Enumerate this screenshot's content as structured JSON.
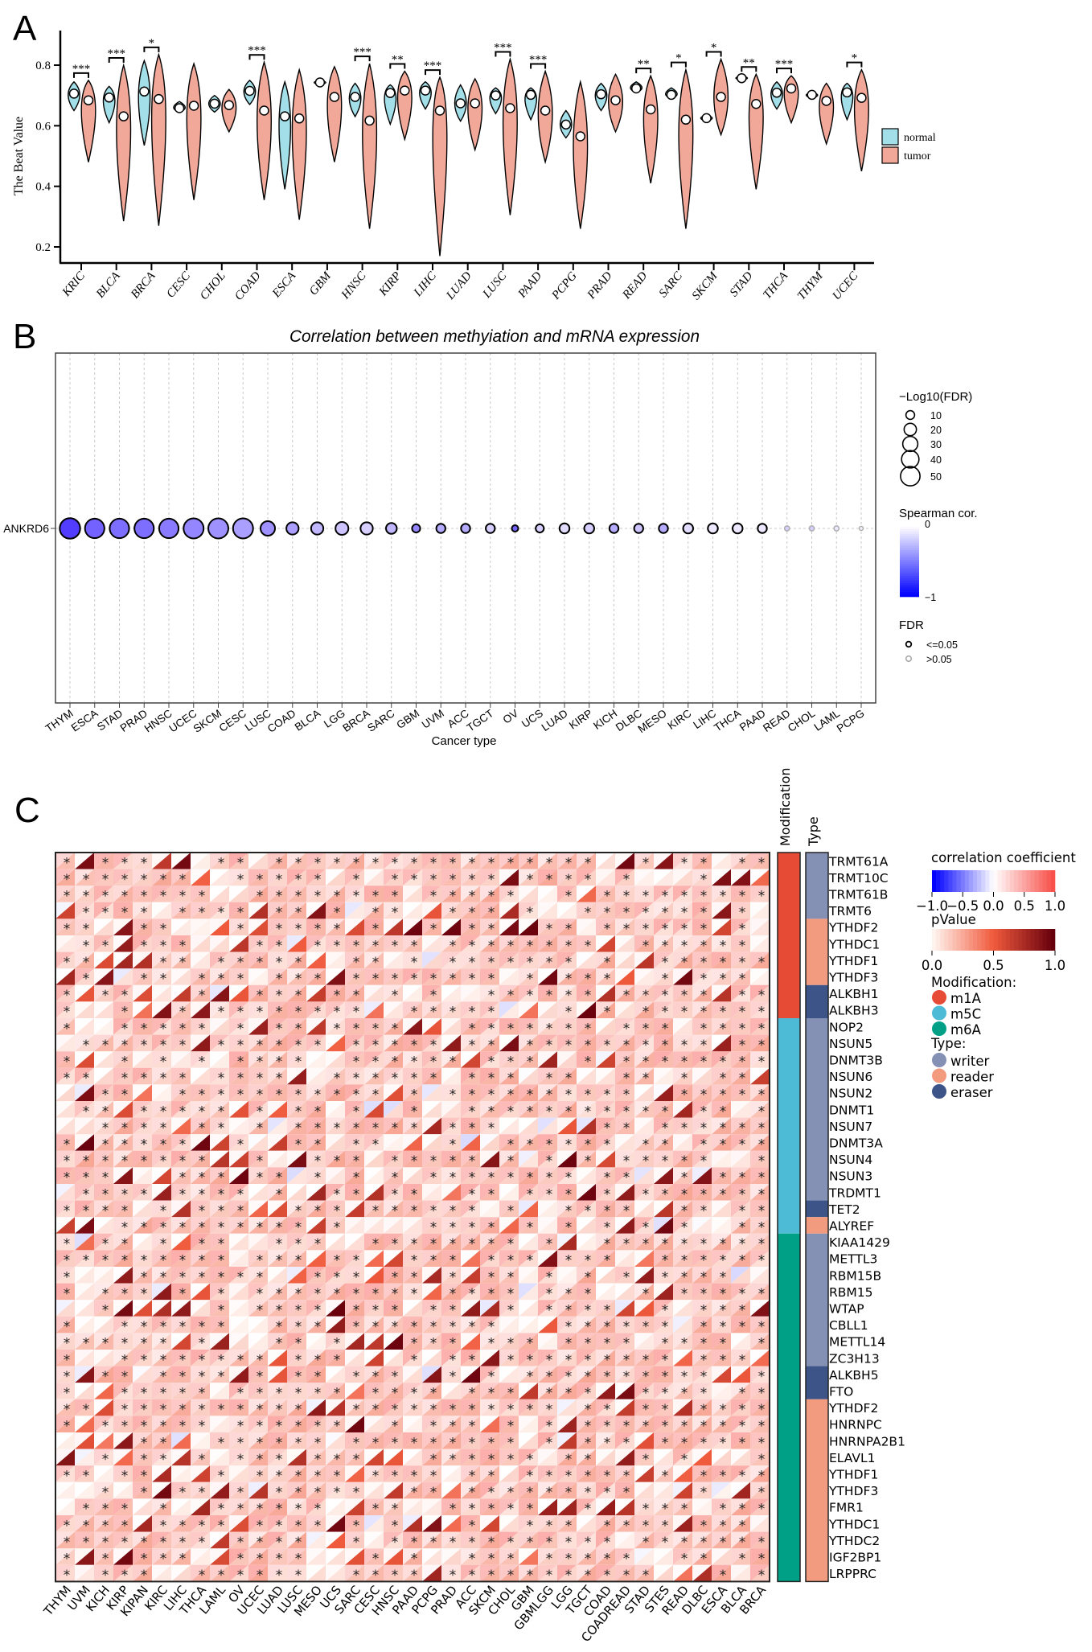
{
  "panels": {
    "a": "A",
    "b": "B",
    "c": "C"
  },
  "chart_data": [
    {
      "type": "violin",
      "ylabel": "The Beat Value",
      "ylim": [
        0.15,
        0.88
      ],
      "yticks": [
        "0.2",
        "0.4",
        "0.6",
        "0.8"
      ],
      "categories": [
        "KRIC",
        "BLCA",
        "BRCA",
        "CESC",
        "CHOL",
        "COAD",
        "ESCA",
        "GBM",
        "HNSC",
        "KIRP",
        "LIHC",
        "LUAD",
        "LUSC",
        "PAAD",
        "PCPG",
        "PRAD",
        "READ",
        "SARC",
        "SKCM",
        "STAD",
        "THCA",
        "THYM",
        "UCEC"
      ],
      "legend": [
        {
          "name": "normal",
          "color": "#a3dfe8"
        },
        {
          "name": "tumor",
          "color": "#f2a898"
        }
      ],
      "series": {
        "normal": {
          "median": [
            0.706,
            0.693,
            0.713,
            0.658,
            0.673,
            0.715,
            0.631,
            0.743,
            0.695,
            0.708,
            0.716,
            0.674,
            0.7,
            0.702,
            0.604,
            0.704,
            0.723,
            0.702,
            0.625,
            0.757,
            0.709,
            0.702,
            0.71
          ],
          "min": [
            0.65,
            0.61,
            0.535,
            0.645,
            0.645,
            0.67,
            0.39,
            0.735,
            0.63,
            0.605,
            0.655,
            0.615,
            0.64,
            0.62,
            0.56,
            0.65,
            0.71,
            0.69,
            0.615,
            0.75,
            0.655,
            0.69,
            0.62
          ],
          "max": [
            0.745,
            0.73,
            0.815,
            0.68,
            0.7,
            0.75,
            0.745,
            0.75,
            0.74,
            0.735,
            0.745,
            0.735,
            0.725,
            0.725,
            0.65,
            0.74,
            0.745,
            0.725,
            0.635,
            0.765,
            0.745,
            0.71,
            0.74
          ]
        },
        "tumor": {
          "median": [
            0.684,
            0.631,
            0.688,
            0.666,
            0.668,
            0.65,
            0.624,
            0.695,
            0.617,
            0.716,
            0.65,
            0.674,
            0.658,
            0.65,
            0.565,
            0.684,
            0.654,
            0.62,
            0.695,
            0.672,
            0.723,
            0.682,
            0.692
          ],
          "min": [
            0.48,
            0.285,
            0.27,
            0.355,
            0.58,
            0.355,
            0.29,
            0.48,
            0.26,
            0.555,
            0.17,
            0.52,
            0.305,
            0.48,
            0.26,
            0.58,
            0.41,
            0.26,
            0.57,
            0.39,
            0.61,
            0.54,
            0.45
          ],
          "max": [
            0.75,
            0.8,
            0.835,
            0.805,
            0.72,
            0.81,
            0.785,
            0.795,
            0.805,
            0.78,
            0.76,
            0.755,
            0.82,
            0.78,
            0.745,
            0.77,
            0.765,
            0.785,
            0.82,
            0.77,
            0.765,
            0.74,
            0.785
          ]
        }
      },
      "significance": [
        "***",
        "***",
        "*",
        "",
        "",
        "***",
        "",
        "",
        "***",
        "**",
        "***",
        "",
        "***",
        "***",
        "",
        "",
        "**",
        "*",
        "*",
        "**",
        "***",
        "",
        "*"
      ]
    },
    {
      "type": "scatter",
      "title": "Correlation between methyiation and mRNA expression",
      "xlabel": "Cancer type",
      "rows": [
        "ANKRD6"
      ],
      "categories": [
        "THYM",
        "ESCA",
        "STAD",
        "PRAD",
        "HNSC",
        "UCEC",
        "SKCM",
        "CESC",
        "LUSC",
        "COAD",
        "BLCA",
        "LGG",
        "BRCA",
        "SARC",
        "GBM",
        "UVM",
        "ACC",
        "TGCT",
        "OV",
        "UCS",
        "LUAD",
        "KIRP",
        "KICH",
        "DLBC",
        "MESO",
        "KIRC",
        "LIHC",
        "THCA",
        "PAAD",
        "READ",
        "CHOL",
        "LAML",
        "PCPG"
      ],
      "spearman_cor": [
        -0.75,
        -0.6,
        -0.55,
        -0.55,
        -0.5,
        -0.45,
        -0.4,
        -0.35,
        -0.4,
        -0.35,
        -0.25,
        -0.2,
        -0.15,
        -0.25,
        -0.45,
        -0.3,
        -0.3,
        -0.15,
        -0.6,
        -0.15,
        -0.1,
        -0.15,
        -0.3,
        -0.2,
        -0.3,
        -0.1,
        -0.05,
        -0.05,
        -0.05,
        -0.15,
        -0.15,
        -0.05,
        -0.03
      ],
      "neg_log10_fdr": [
        50,
        45,
        45,
        45,
        45,
        48,
        48,
        48,
        25,
        18,
        18,
        20,
        18,
        14,
        8,
        10,
        10,
        10,
        5,
        8,
        12,
        12,
        10,
        10,
        10,
        12,
        12,
        12,
        10,
        3,
        3,
        3,
        2
      ],
      "fdr_significant": [
        true,
        true,
        true,
        true,
        true,
        true,
        true,
        true,
        true,
        true,
        true,
        true,
        true,
        true,
        true,
        true,
        true,
        true,
        true,
        true,
        true,
        true,
        true,
        true,
        true,
        true,
        true,
        true,
        true,
        false,
        false,
        false,
        false
      ],
      "legend": {
        "size_title": "−Log10(FDR)",
        "size_values": [
          10,
          20,
          30,
          40,
          50
        ],
        "size_labels": [
          "10",
          "20",
          "30",
          "40",
          "50"
        ],
        "color_title": "Spearman cor.",
        "color_range": [
          -1,
          0
        ],
        "color_top_label": "0",
        "color_bottom_label": "−1",
        "color_low": "#0000ff",
        "color_high": "#ffffff",
        "fdr_title": "FDR",
        "fdr_labels": [
          "<=0.05",
          ">0.05"
        ]
      }
    },
    {
      "type": "heatmap",
      "columns": [
        "THYM",
        "UVM",
        "KICH",
        "KIRP",
        "KIPAN",
        "KIRC",
        "LIHC",
        "THCA",
        "LAML",
        "OV",
        "UCEC",
        "LUAD",
        "LUSC",
        "MESO",
        "UCS",
        "SARC",
        "CESC",
        "HNSC",
        "PAAD",
        "PCPG",
        "PRAD",
        "ACC",
        "SKCM",
        "CHOL",
        "GBM",
        "GBMLGG",
        "LGG",
        "TGCT",
        "COAD",
        "COADREAD",
        "STAD",
        "STES",
        "READ",
        "DLBC",
        "ESCA",
        "BLCA",
        "BRCA"
      ],
      "rows": [
        {
          "gene": "TRMT61A",
          "modification": "m1A",
          "type": "writer"
        },
        {
          "gene": "TRMT10C",
          "modification": "m1A",
          "type": "writer"
        },
        {
          "gene": "TRMT61B",
          "modification": "m1A",
          "type": "writer"
        },
        {
          "gene": "TRMT6",
          "modification": "m1A",
          "type": "writer"
        },
        {
          "gene": "YTHDF2",
          "modification": "m1A",
          "type": "reader"
        },
        {
          "gene": "YTHDC1",
          "modification": "m1A",
          "type": "reader"
        },
        {
          "gene": "YTHDF1",
          "modification": "m1A",
          "type": "reader"
        },
        {
          "gene": "YTHDF3",
          "modification": "m1A",
          "type": "reader"
        },
        {
          "gene": "ALKBH1",
          "modification": "m1A",
          "type": "eraser"
        },
        {
          "gene": "ALKBH3",
          "modification": "m1A",
          "type": "eraser"
        },
        {
          "gene": "NOP2",
          "modification": "m5C",
          "type": "writer"
        },
        {
          "gene": "NSUN5",
          "modification": "m5C",
          "type": "writer"
        },
        {
          "gene": "DNMT3B",
          "modification": "m5C",
          "type": "writer"
        },
        {
          "gene": "NSUN6",
          "modification": "m5C",
          "type": "writer"
        },
        {
          "gene": "NSUN2",
          "modification": "m5C",
          "type": "writer"
        },
        {
          "gene": "DNMT1",
          "modification": "m5C",
          "type": "writer"
        },
        {
          "gene": "NSUN7",
          "modification": "m5C",
          "type": "writer"
        },
        {
          "gene": "DNMT3A",
          "modification": "m5C",
          "type": "writer"
        },
        {
          "gene": "NSUN4",
          "modification": "m5C",
          "type": "writer"
        },
        {
          "gene": "NSUN3",
          "modification": "m5C",
          "type": "writer"
        },
        {
          "gene": "TRDMT1",
          "modification": "m5C",
          "type": "writer"
        },
        {
          "gene": "TET2",
          "modification": "m5C",
          "type": "eraser"
        },
        {
          "gene": "ALYREF",
          "modification": "m5C",
          "type": "reader"
        },
        {
          "gene": "KIAA1429",
          "modification": "m6A",
          "type": "writer"
        },
        {
          "gene": "METTL3",
          "modification": "m6A",
          "type": "writer"
        },
        {
          "gene": "RBM15B",
          "modification": "m6A",
          "type": "writer"
        },
        {
          "gene": "RBM15",
          "modification": "m6A",
          "type": "writer"
        },
        {
          "gene": "WTAP",
          "modification": "m6A",
          "type": "writer"
        },
        {
          "gene": "CBLL1",
          "modification": "m6A",
          "type": "writer"
        },
        {
          "gene": "METTL14",
          "modification": "m6A",
          "type": "writer"
        },
        {
          "gene": "ZC3H13",
          "modification": "m6A",
          "type": "writer"
        },
        {
          "gene": "ALKBH5",
          "modification": "m6A",
          "type": "eraser"
        },
        {
          "gene": "FTO",
          "modification": "m6A",
          "type": "eraser"
        },
        {
          "gene": "YTHDF2",
          "modification": "m6A",
          "type": "reader"
        },
        {
          "gene": "HNRNPC",
          "modification": "m6A",
          "type": "reader"
        },
        {
          "gene": "HNRNPA2B1",
          "modification": "m6A",
          "type": "reader"
        },
        {
          "gene": "ELAVL1",
          "modification": "m6A",
          "type": "reader"
        },
        {
          "gene": "YTHDF1",
          "modification": "m6A",
          "type": "reader"
        },
        {
          "gene": "YTHDF3",
          "modification": "m6A",
          "type": "reader"
        },
        {
          "gene": "FMR1",
          "modification": "m6A",
          "type": "reader"
        },
        {
          "gene": "YTHDC1",
          "modification": "m6A",
          "type": "reader"
        },
        {
          "gene": "YTHDC2",
          "modification": "m6A",
          "type": "reader"
        },
        {
          "gene": "IGF2BP1",
          "modification": "m6A",
          "type": "reader"
        },
        {
          "gene": "LRPPRC",
          "modification": "m6A",
          "type": "reader"
        }
      ],
      "annotation_headers": [
        "Modification",
        "Type"
      ],
      "significance_mark": "*",
      "legend": {
        "corr_title": "correlation coefficient",
        "corr_ticks": [
          "−1.0",
          "−0.5",
          "0.0",
          "0.5",
          "1.0"
        ],
        "corr_colors": [
          "#0000ff",
          "#ffffff",
          "#f8504a"
        ],
        "p_title": "pValue",
        "p_ticks": [
          "0.0",
          "0.5",
          "1.0"
        ],
        "p_colors": [
          "#fff3ee",
          "#f05a3c",
          "#67000d"
        ],
        "modification_title": "Modification:",
        "modification": [
          {
            "name": "m1A",
            "color": "#e64b35"
          },
          {
            "name": "m5C",
            "color": "#4dbbd5"
          },
          {
            "name": "m6A",
            "color": "#00a087"
          }
        ],
        "type_title": "Type:",
        "type": [
          {
            "name": "writer",
            "color": "#8491b4"
          },
          {
            "name": "reader",
            "color": "#f39b7f"
          },
          {
            "name": "eraser",
            "color": "#3c5488"
          }
        ]
      }
    }
  ]
}
